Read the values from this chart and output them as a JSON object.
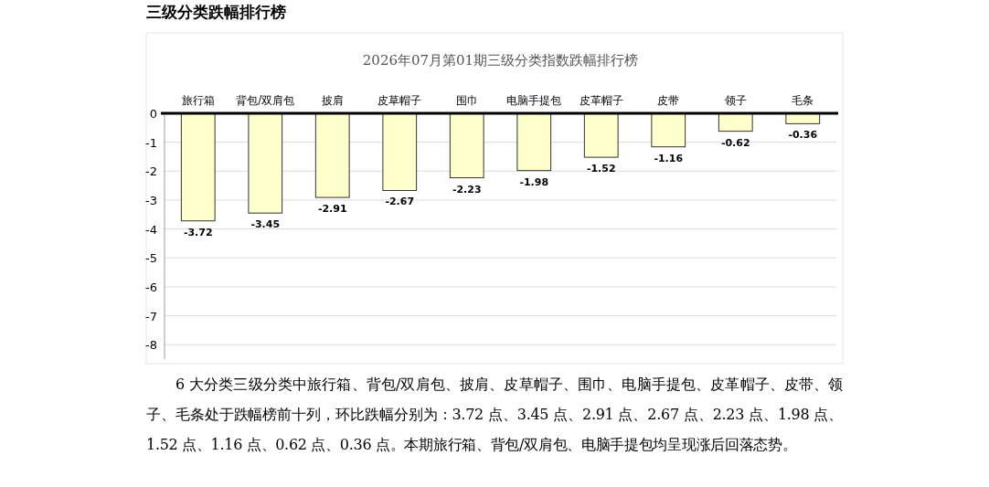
{
  "chart_data": {
    "type": "bar",
    "title": "2026年07月第01期三级分类指数跌幅排行榜",
    "categories": [
      "旅行箱",
      "背包/双肩包",
      "披肩",
      "皮草帽子",
      "围巾",
      "电脑手提包",
      "皮革帽子",
      "皮带",
      "领子",
      "毛条"
    ],
    "values": [
      -3.72,
      -3.45,
      -2.91,
      -2.67,
      -2.23,
      -1.98,
      -1.52,
      -1.16,
      -0.62,
      -0.36
    ],
    "color": "#ffffcc",
    "ylim": [
      -8.5,
      0
    ],
    "yticks": [
      0,
      -1,
      -2,
      -3,
      -4,
      -5,
      -6,
      -7,
      -8
    ],
    "grid": "y",
    "data_labels": true,
    "annotations": [
      "三级分类跌幅排行榜",
      "6 大分类三级分类中旅行箱、背包/双肩包、披肩、皮草帽子、围巾、电脑手提包、皮革帽子、皮带、领子、毛条处于跌幅榜前十列，环比跌幅分别为：3.72 点、3.45 点、2.91 点、2.67 点、2.23 点、1.98 点、1.52 点、1.16 点、0.62 点、0.36 点。本期旅行箱、背包/双肩包、电脑手提包均呈现涨后回落态势。"
    ]
  }
}
